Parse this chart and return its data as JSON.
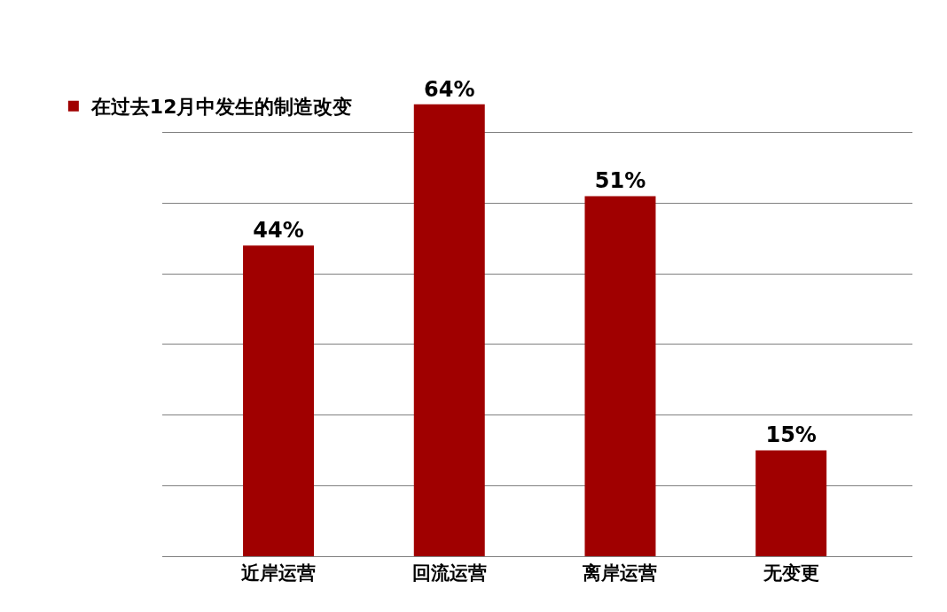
{
  "chart_data": {
    "type": "bar",
    "categories": [
      "近岸运营",
      "回流运营",
      "离岸运营",
      "无变更"
    ],
    "series": [
      {
        "name": "在过去12月中发生的制造改变",
        "color": "#a00000",
        "values": [
          44,
          64,
          51,
          15
        ],
        "value_labels": [
          "44%",
          "64%",
          "51%",
          "15%"
        ]
      }
    ],
    "yticks": [
      {
        "value": 0,
        "label": null
      },
      {
        "value": 10,
        "label": null
      },
      {
        "value": 20,
        "label": null
      },
      {
        "value": 30,
        "label": null
      },
      {
        "value": 40,
        "label": null
      },
      {
        "value": 50,
        "label": null
      },
      {
        "value": 60,
        "label": null
      }
    ],
    "tick_labels": "x",
    "grid": "y",
    "legend": "top left"
  }
}
